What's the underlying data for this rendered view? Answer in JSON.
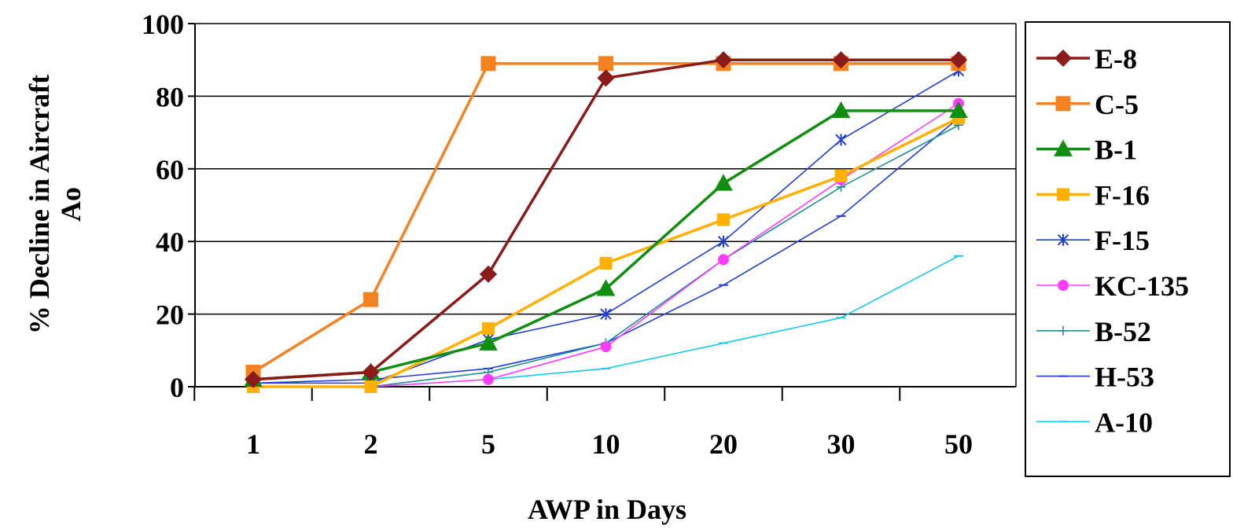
{
  "chart_data": {
    "type": "line",
    "title": "",
    "xlabel": "AWP in Days",
    "ylabel_line1": "% Decline in Aircraft",
    "ylabel_line2": "Ao",
    "categories": [
      "1",
      "2",
      "5",
      "10",
      "20",
      "30",
      "50"
    ],
    "ylim": [
      0,
      100
    ],
    "yticks": [
      0,
      20,
      40,
      60,
      80,
      100
    ],
    "grid": "horizontal",
    "legend_placement": "right",
    "series": [
      {
        "name": "E-8",
        "color": "#8B1A1A",
        "marker": "diamond",
        "weight": "heavy",
        "values": [
          2,
          4,
          31,
          85,
          90,
          90,
          90
        ]
      },
      {
        "name": "C-5",
        "color": "#F58220",
        "marker": "square",
        "weight": "heavy",
        "values": [
          4,
          24,
          89,
          89,
          89,
          89,
          89
        ]
      },
      {
        "name": "B-1",
        "color": "#108E10",
        "marker": "triangle",
        "weight": "heavy",
        "values": [
          2,
          4,
          12,
          27,
          56,
          76,
          76
        ]
      },
      {
        "name": "F-16",
        "color": "#FFB000",
        "marker": "square-small",
        "weight": "heavy",
        "values": [
          0,
          0,
          16,
          34,
          46,
          58,
          74
        ]
      },
      {
        "name": "F-15",
        "color": "#1F3FD8",
        "marker": "asterisk",
        "weight": "thin",
        "values": [
          1,
          1,
          13,
          20,
          40,
          68,
          87
        ]
      },
      {
        "name": "KC-135",
        "color": "#FF3CFF",
        "marker": "circle",
        "weight": "thin",
        "values": [
          0,
          0,
          2,
          11,
          35,
          57,
          78
        ]
      },
      {
        "name": "B-52",
        "color": "#1F9090",
        "marker": "plus",
        "weight": "thin",
        "values": [
          0,
          0,
          4,
          12,
          35,
          55,
          72
        ]
      },
      {
        "name": "H-53",
        "color": "#1F3FD8",
        "marker": "dash",
        "weight": "thin",
        "values": [
          1,
          2,
          5,
          12,
          28,
          47,
          74
        ]
      },
      {
        "name": "A-10",
        "color": "#17C8EE",
        "marker": "dash",
        "weight": "thin",
        "values": [
          0,
          0,
          2,
          5,
          12,
          19,
          36
        ]
      }
    ]
  }
}
